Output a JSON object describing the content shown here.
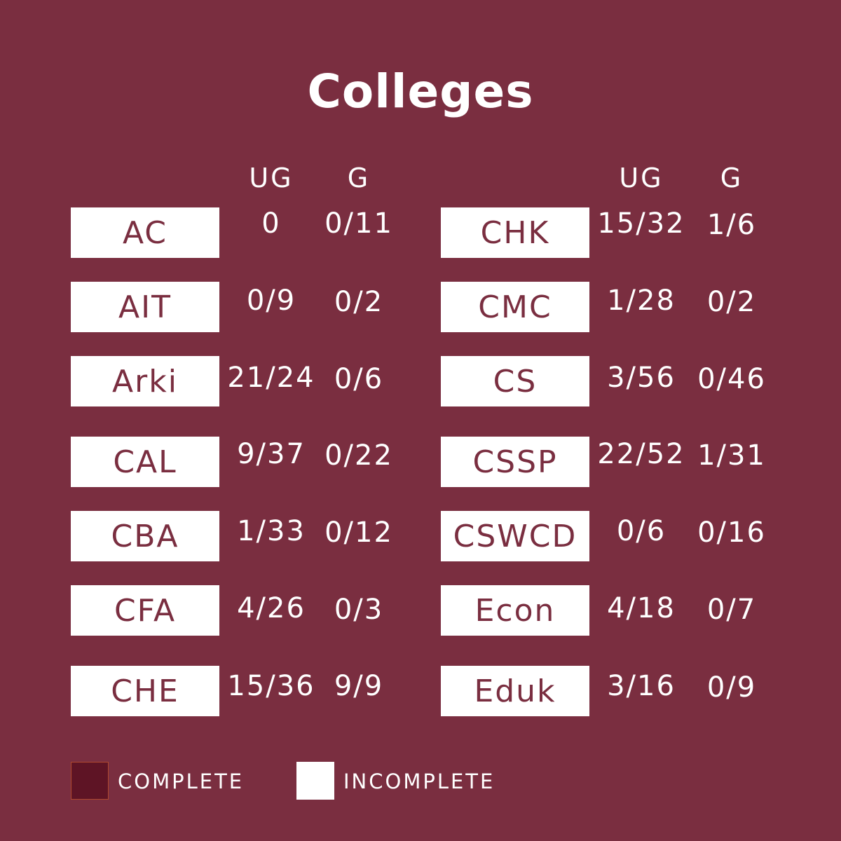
{
  "title": "Colleges",
  "headers": {
    "ug": "UG",
    "g": "G"
  },
  "left_rows": [
    {
      "name": "AC",
      "ug": "0",
      "g": "0/11"
    },
    {
      "name": "AIT",
      "ug": "0/9",
      "g": "0/2"
    },
    {
      "name": "Arki",
      "ug": "21/24",
      "g": "0/6"
    },
    {
      "name": "CAL",
      "ug": "9/37",
      "g": "0/22"
    },
    {
      "name": "CBA",
      "ug": "1/33",
      "g": "0/12"
    },
    {
      "name": "CFA",
      "ug": "4/26",
      "g": "0/3"
    },
    {
      "name": "CHE",
      "ug": "15/36",
      "g": "9/9"
    }
  ],
  "right_rows": [
    {
      "name": "CHK",
      "ug": "15/32",
      "g": "1/6"
    },
    {
      "name": "CMC",
      "ug": "1/28",
      "g": "0/2"
    },
    {
      "name": "CS",
      "ug": "3/56",
      "g": "0/46"
    },
    {
      "name": "CSSP",
      "ug": "22/52",
      "g": "1/31"
    },
    {
      "name": "CSWCD",
      "ug": "0/6",
      "g": "0/16"
    },
    {
      "name": "Econ",
      "ug": "4/18",
      "g": "0/7"
    },
    {
      "name": "Eduk",
      "ug": "3/16",
      "g": "0/9"
    }
  ],
  "legend": {
    "complete": {
      "label": "COMPLETE",
      "color": "#5e1425"
    },
    "incomplete": {
      "label": "INCOMPLETE",
      "color": "#ffffff"
    }
  },
  "colors": {
    "background": "#7a2e40",
    "tag_text": "#7a2e40",
    "text": "#ffffff"
  }
}
